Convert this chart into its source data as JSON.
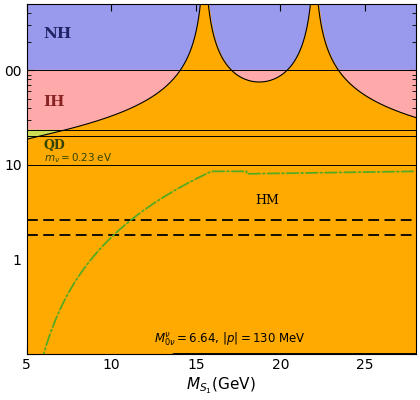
{
  "xmin": 5,
  "xmax": 28,
  "ymin": 0.1,
  "ymax": 500,
  "NH_band": [
    100,
    500
  ],
  "IH_band": [
    20,
    100
  ],
  "QD_band": [
    10,
    23
  ],
  "HM_band": [
    1.8,
    2.6
  ],
  "NH_color": "#9999ee",
  "IH_color": "#ffaaaa",
  "QD_color": "#ccdd55",
  "HM_color": "#bbbbbb",
  "orange_color": "#ffaa00",
  "peak1_x": 15.5,
  "peak2_x": 22.0,
  "NH_label": "NH",
  "IH_label": "IH"
}
